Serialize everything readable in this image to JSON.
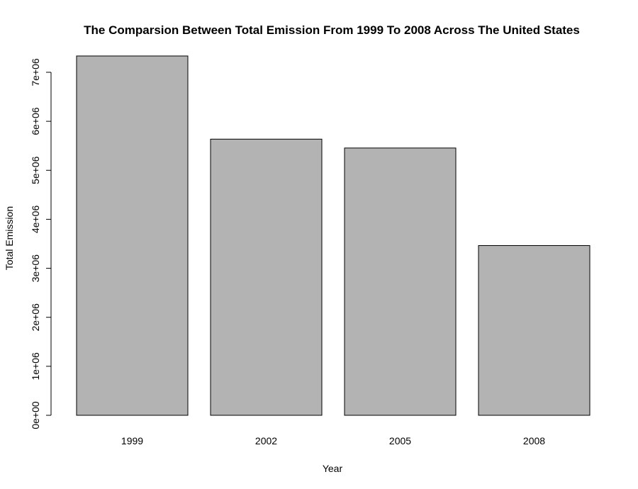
{
  "chart_data": {
    "type": "bar",
    "title": "The Comparsion Between Total Emission From 1999 To 2008 Across The United States",
    "xlabel": "Year",
    "ylabel": "Total Emission",
    "categories": [
      "1999",
      "2002",
      "2005",
      "2008"
    ],
    "values": [
      7332967,
      5635780,
      5454703,
      3464206
    ],
    "ylim": [
      0,
      7000000
    ],
    "yticks": [
      0,
      1000000,
      2000000,
      3000000,
      4000000,
      5000000,
      6000000,
      7000000
    ],
    "ytick_labels": [
      "0e+00",
      "1e+06",
      "2e+06",
      "3e+06",
      "4e+06",
      "5e+06",
      "6e+06",
      "7e+06"
    ],
    "bar_color": "#b3b3b3",
    "grid": false,
    "legend": "none"
  }
}
